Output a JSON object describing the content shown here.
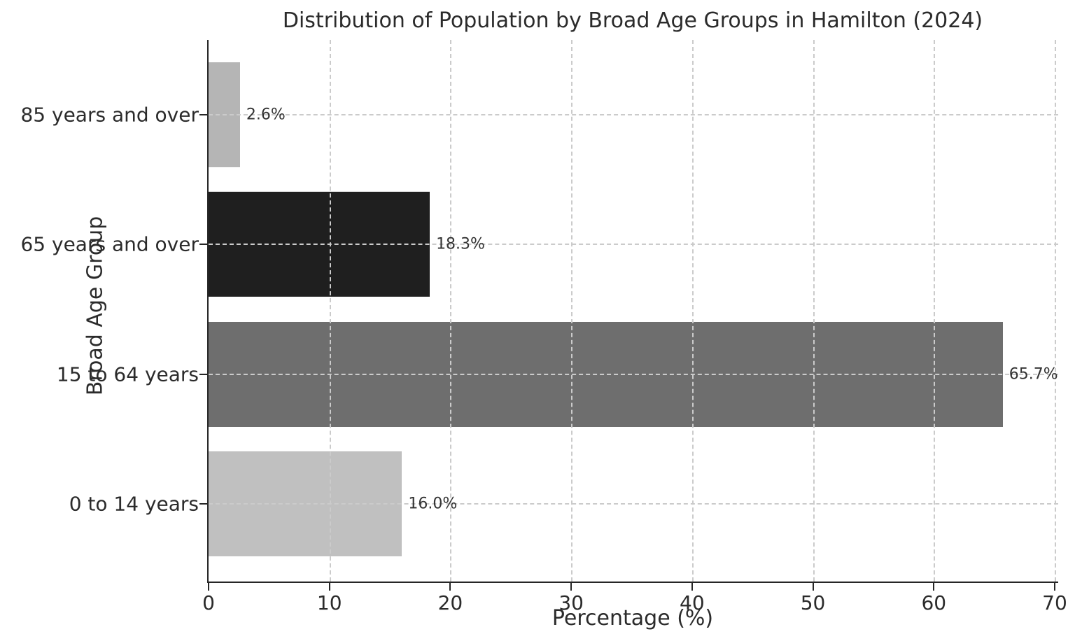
{
  "chart_data": {
    "type": "bar",
    "orientation": "horizontal",
    "title": "Distribution of Population by Broad Age Groups in Hamilton (2024)",
    "xlabel": "Percentage (%)",
    "ylabel": "Broad Age Group",
    "categories": [
      "85 years and over",
      "65 years and over",
      "15 to 64 years",
      "0 to 14 years"
    ],
    "values": [
      2.6,
      18.3,
      65.7,
      16.0
    ],
    "value_labels": [
      "2.6%",
      "18.3%",
      "65.7%",
      "16.0%"
    ],
    "bar_colors": [
      "#b5b5b5",
      "#1f1f1f",
      "#6e6e6e",
      "#c0c0c0"
    ],
    "xlim": [
      0,
      70
    ],
    "xticks": [
      0,
      10,
      20,
      30,
      40,
      50,
      60,
      70
    ],
    "grid": "dashed",
    "gridline_color": "#cbcbcb",
    "axis_color": "#262626",
    "text_color": "#2b2b2b",
    "background_color": "#ffffff",
    "legend": "none"
  }
}
